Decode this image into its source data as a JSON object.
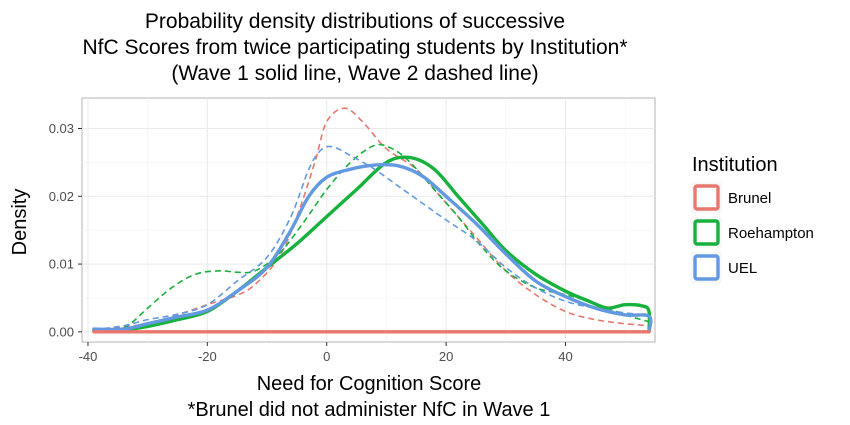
{
  "chart_data": {
    "type": "line",
    "title": [
      "Probability density distributions of successive",
      "NfC Scores from twice participating students by Institution*",
      "(Wave 1 solid line, Wave 2 dashed line)"
    ],
    "xlabel": [
      "Need for Cognition Score",
      "*Brunel did not administer NfC in Wave 1"
    ],
    "ylabel": "Density",
    "xlim": [
      -41,
      55
    ],
    "ylim": [
      -0.0015,
      0.0345
    ],
    "x_ticks": [
      -40,
      -20,
      0,
      20,
      40
    ],
    "x_tick_labels": [
      "-40",
      "-20",
      "0",
      "20",
      "40"
    ],
    "y_ticks": [
      0.0,
      0.01,
      0.02,
      0.03
    ],
    "y_tick_labels": [
      "0.00",
      "0.01",
      "0.02",
      "0.03"
    ],
    "grid": true,
    "legend": {
      "title": "Institution",
      "placement": "right",
      "entries": [
        "Brunel",
        "Roehampton",
        "UEL"
      ]
    },
    "colors": {
      "Brunel": "#e8776e",
      "Roehampton": "#17b13d",
      "UEL": "#6299e0",
      "grid": "#ebebeb",
      "panel_border": "#b3b3b3"
    },
    "series": [
      {
        "name": "Brunel",
        "wave": 2,
        "dash": true,
        "points": [
          [
            -39,
            0.0003
          ],
          [
            -30,
            0.0012
          ],
          [
            -25,
            0.0025
          ],
          [
            -20,
            0.004
          ],
          [
            -15,
            0.0054
          ],
          [
            -12,
            0.007
          ],
          [
            -8,
            0.011
          ],
          [
            -5,
            0.017
          ],
          [
            -2,
            0.025
          ],
          [
            0,
            0.031
          ],
          [
            3,
            0.033
          ],
          [
            6,
            0.031
          ],
          [
            10,
            0.027
          ],
          [
            15,
            0.024
          ],
          [
            20,
            0.019
          ],
          [
            25,
            0.014
          ],
          [
            30,
            0.009
          ],
          [
            35,
            0.0055
          ],
          [
            40,
            0.003
          ],
          [
            45,
            0.0018
          ],
          [
            50,
            0.0012
          ],
          [
            54,
            0.0009
          ]
        ]
      },
      {
        "name": "Roehampton",
        "wave": 1,
        "dash": false,
        "points": [
          [
            -39,
            0.0002
          ],
          [
            -34,
            0.0003
          ],
          [
            -30,
            0.0008
          ],
          [
            -25,
            0.0018
          ],
          [
            -20,
            0.003
          ],
          [
            -15,
            0.006
          ],
          [
            -10,
            0.0095
          ],
          [
            -5,
            0.013
          ],
          [
            0,
            0.017
          ],
          [
            5,
            0.021
          ],
          [
            10,
            0.025
          ],
          [
            14,
            0.0257
          ],
          [
            18,
            0.024
          ],
          [
            22,
            0.02
          ],
          [
            26,
            0.016
          ],
          [
            30,
            0.012
          ],
          [
            35,
            0.0085
          ],
          [
            40,
            0.006
          ],
          [
            44,
            0.0045
          ],
          [
            47,
            0.0035
          ],
          [
            50,
            0.004
          ],
          [
            53,
            0.0038
          ],
          [
            54,
            0.003
          ],
          [
            54,
            0
          ]
        ]
      },
      {
        "name": "Roehampton",
        "wave": 2,
        "dash": true,
        "points": [
          [
            -39,
            0.0001
          ],
          [
            -34,
            0.0006
          ],
          [
            -30,
            0.0035
          ],
          [
            -26,
            0.0065
          ],
          [
            -22,
            0.0085
          ],
          [
            -18,
            0.009
          ],
          [
            -15,
            0.0088
          ],
          [
            -12,
            0.009
          ],
          [
            -8,
            0.0115
          ],
          [
            -4,
            0.016
          ],
          [
            0,
            0.021
          ],
          [
            4,
            0.025
          ],
          [
            8,
            0.0275
          ],
          [
            11,
            0.027
          ],
          [
            14,
            0.025
          ],
          [
            18,
            0.021
          ],
          [
            22,
            0.017
          ],
          [
            26,
            0.0125
          ],
          [
            30,
            0.009
          ],
          [
            35,
            0.0065
          ],
          [
            40,
            0.0055
          ],
          [
            45,
            0.0042
          ],
          [
            50,
            0.0025
          ],
          [
            54,
            0.0015
          ]
        ]
      },
      {
        "name": "UEL",
        "wave": 1,
        "dash": false,
        "points": [
          [
            -39,
            0.0004
          ],
          [
            -34,
            0.0004
          ],
          [
            -30,
            0.0012
          ],
          [
            -25,
            0.0022
          ],
          [
            -20,
            0.0032
          ],
          [
            -15,
            0.006
          ],
          [
            -10,
            0.0095
          ],
          [
            -6,
            0.015
          ],
          [
            -3,
            0.02
          ],
          [
            0,
            0.0228
          ],
          [
            4,
            0.024
          ],
          [
            8,
            0.0246
          ],
          [
            12,
            0.0245
          ],
          [
            16,
            0.023
          ],
          [
            20,
            0.02
          ],
          [
            25,
            0.016
          ],
          [
            30,
            0.0115
          ],
          [
            35,
            0.0075
          ],
          [
            40,
            0.0052
          ],
          [
            45,
            0.0035
          ],
          [
            50,
            0.0025
          ],
          [
            54,
            0.0023
          ],
          [
            54,
            0
          ]
        ]
      },
      {
        "name": "UEL",
        "wave": 2,
        "dash": true,
        "points": [
          [
            -39,
            0.0003
          ],
          [
            -34,
            0.0009
          ],
          [
            -30,
            0.0018
          ],
          [
            -25,
            0.0026
          ],
          [
            -20,
            0.004
          ],
          [
            -15,
            0.0075
          ],
          [
            -10,
            0.011
          ],
          [
            -6,
            0.017
          ],
          [
            -3,
            0.024
          ],
          [
            -1,
            0.0268
          ],
          [
            1,
            0.0273
          ],
          [
            4,
            0.026
          ],
          [
            8,
            0.024
          ],
          [
            12,
            0.0215
          ],
          [
            16,
            0.019
          ],
          [
            20,
            0.0165
          ],
          [
            25,
            0.0135
          ],
          [
            30,
            0.0095
          ],
          [
            35,
            0.0065
          ],
          [
            40,
            0.0045
          ],
          [
            45,
            0.0035
          ],
          [
            50,
            0.0028
          ],
          [
            54,
            0.0025
          ]
        ]
      },
      {
        "name": "Brunel",
        "wave": 1,
        "dash": false,
        "baseline": true,
        "points": [
          [
            -39,
            0
          ],
          [
            54,
            0
          ]
        ]
      }
    ]
  }
}
